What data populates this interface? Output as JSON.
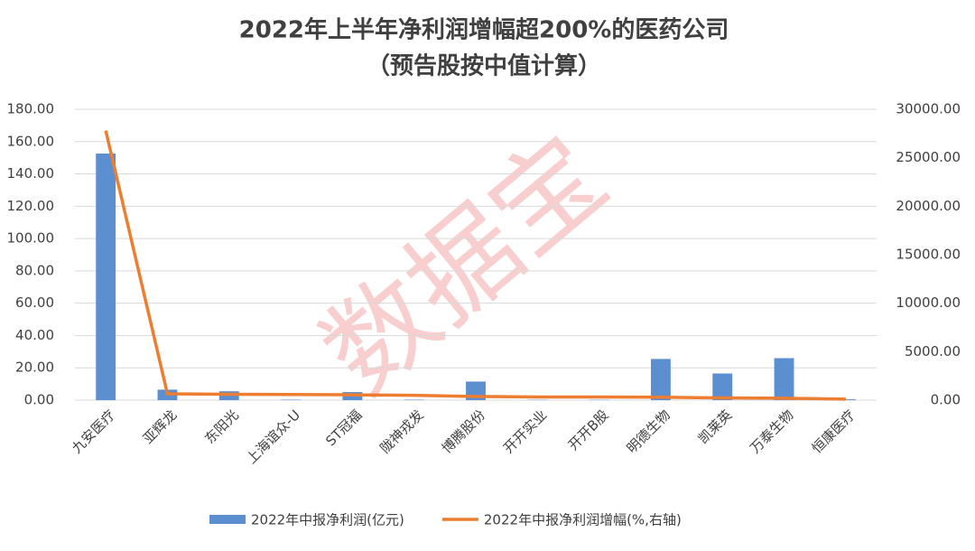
{
  "chart_data": {
    "type": "bar+line",
    "title": "2022年上半年净利润增幅超200%的医药公司",
    "subtitle": "（预告股按中值计算）",
    "watermark": "数据宝",
    "categories": [
      "九安医疗",
      "亚辉龙",
      "东阳光",
      "上海谊众-U",
      "ST冠福",
      "陇神戎发",
      "博腾股份",
      "开开实业",
      "开开B股",
      "明德生物",
      "凯莱英",
      "万泰生物",
      "恒康医疗"
    ],
    "series": [
      {
        "name": "2022年中报净利润(亿元)",
        "type": "bar",
        "color": "#5b8fd0",
        "axis": "y",
        "values": [
          152.6,
          6.5,
          5.5,
          0.3,
          5,
          0.3,
          11.5,
          0.2,
          0.2,
          25.5,
          16.5,
          26,
          0.5
        ]
      },
      {
        "name": "2022年中报净利润增幅(%,右轴)",
        "type": "line",
        "color": "#ed7d31",
        "axis": "y2",
        "values": [
          27800,
          650,
          600,
          580,
          550,
          500,
          380,
          330,
          330,
          300,
          230,
          200,
          100
        ]
      }
    ],
    "ylim": [
      0,
      180
    ],
    "yticks": [
      {
        "value": 0,
        "label": "0.00"
      },
      {
        "value": 20,
        "label": "20.00"
      },
      {
        "value": 40,
        "label": "40.00"
      },
      {
        "value": 60,
        "label": "60.00"
      },
      {
        "value": 80,
        "label": "80.00"
      },
      {
        "value": 100,
        "label": "100.00"
      },
      {
        "value": 120,
        "label": "120.00"
      },
      {
        "value": 140,
        "label": "140.00"
      },
      {
        "value": 160,
        "label": "160.00"
      },
      {
        "value": 180,
        "label": "180.00"
      }
    ],
    "y2lim": [
      0,
      30000
    ],
    "y2ticks": [
      {
        "value": 0,
        "label": "0.00"
      },
      {
        "value": 5000,
        "label": "5000.00"
      },
      {
        "value": 10000,
        "label": "10000.00"
      },
      {
        "value": 15000,
        "label": "15000.00"
      },
      {
        "value": 20000,
        "label": "20000.00"
      },
      {
        "value": 25000,
        "label": "25000.00"
      },
      {
        "value": 30000,
        "label": "30000.00"
      }
    ],
    "grid": true
  }
}
